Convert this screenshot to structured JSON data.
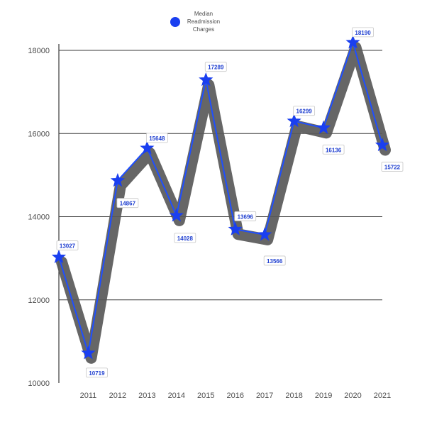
{
  "chart_data": {
    "type": "line",
    "title": "",
    "xlabel": "",
    "ylabel": "",
    "x": [
      "",
      "2011",
      "2012",
      "2013",
      "2014",
      "2015",
      "2016",
      "2017",
      "2018",
      "2019",
      "2020",
      "2021"
    ],
    "series": [
      {
        "name": "Median Readmission Charges",
        "values": [
          13027,
          10719,
          14867,
          15648,
          14028,
          17289,
          13696,
          13566,
          16299,
          16136,
          18190,
          15722
        ],
        "labels": [
          "13027",
          "10719",
          "14867",
          "15648",
          "14028",
          "17289",
          "13696",
          "13566",
          "16299",
          "16136",
          "18190",
          "15722"
        ]
      }
    ],
    "ylim": [
      10000,
      18500
    ],
    "yticks": [
      10000,
      12000,
      14000,
      16000,
      18000
    ],
    "ytick_labels": [
      "10000",
      "12000",
      "14000",
      "16000",
      "18000"
    ],
    "grid": "horizontal",
    "legend_position": "top-center",
    "colors": {
      "line": "#1f4fff",
      "marker": "#1a3ff0",
      "shadow": "#595959",
      "grid": "#3a3a3a",
      "axis_text": "#4d4d4d",
      "label_text": "#1f3fd0",
      "label_border": "#c8c8c8"
    },
    "legend": {
      "label_lines": [
        "Median",
        "Readmission",
        "Charges"
      ],
      "marker_color": "#1a3ff0"
    }
  }
}
